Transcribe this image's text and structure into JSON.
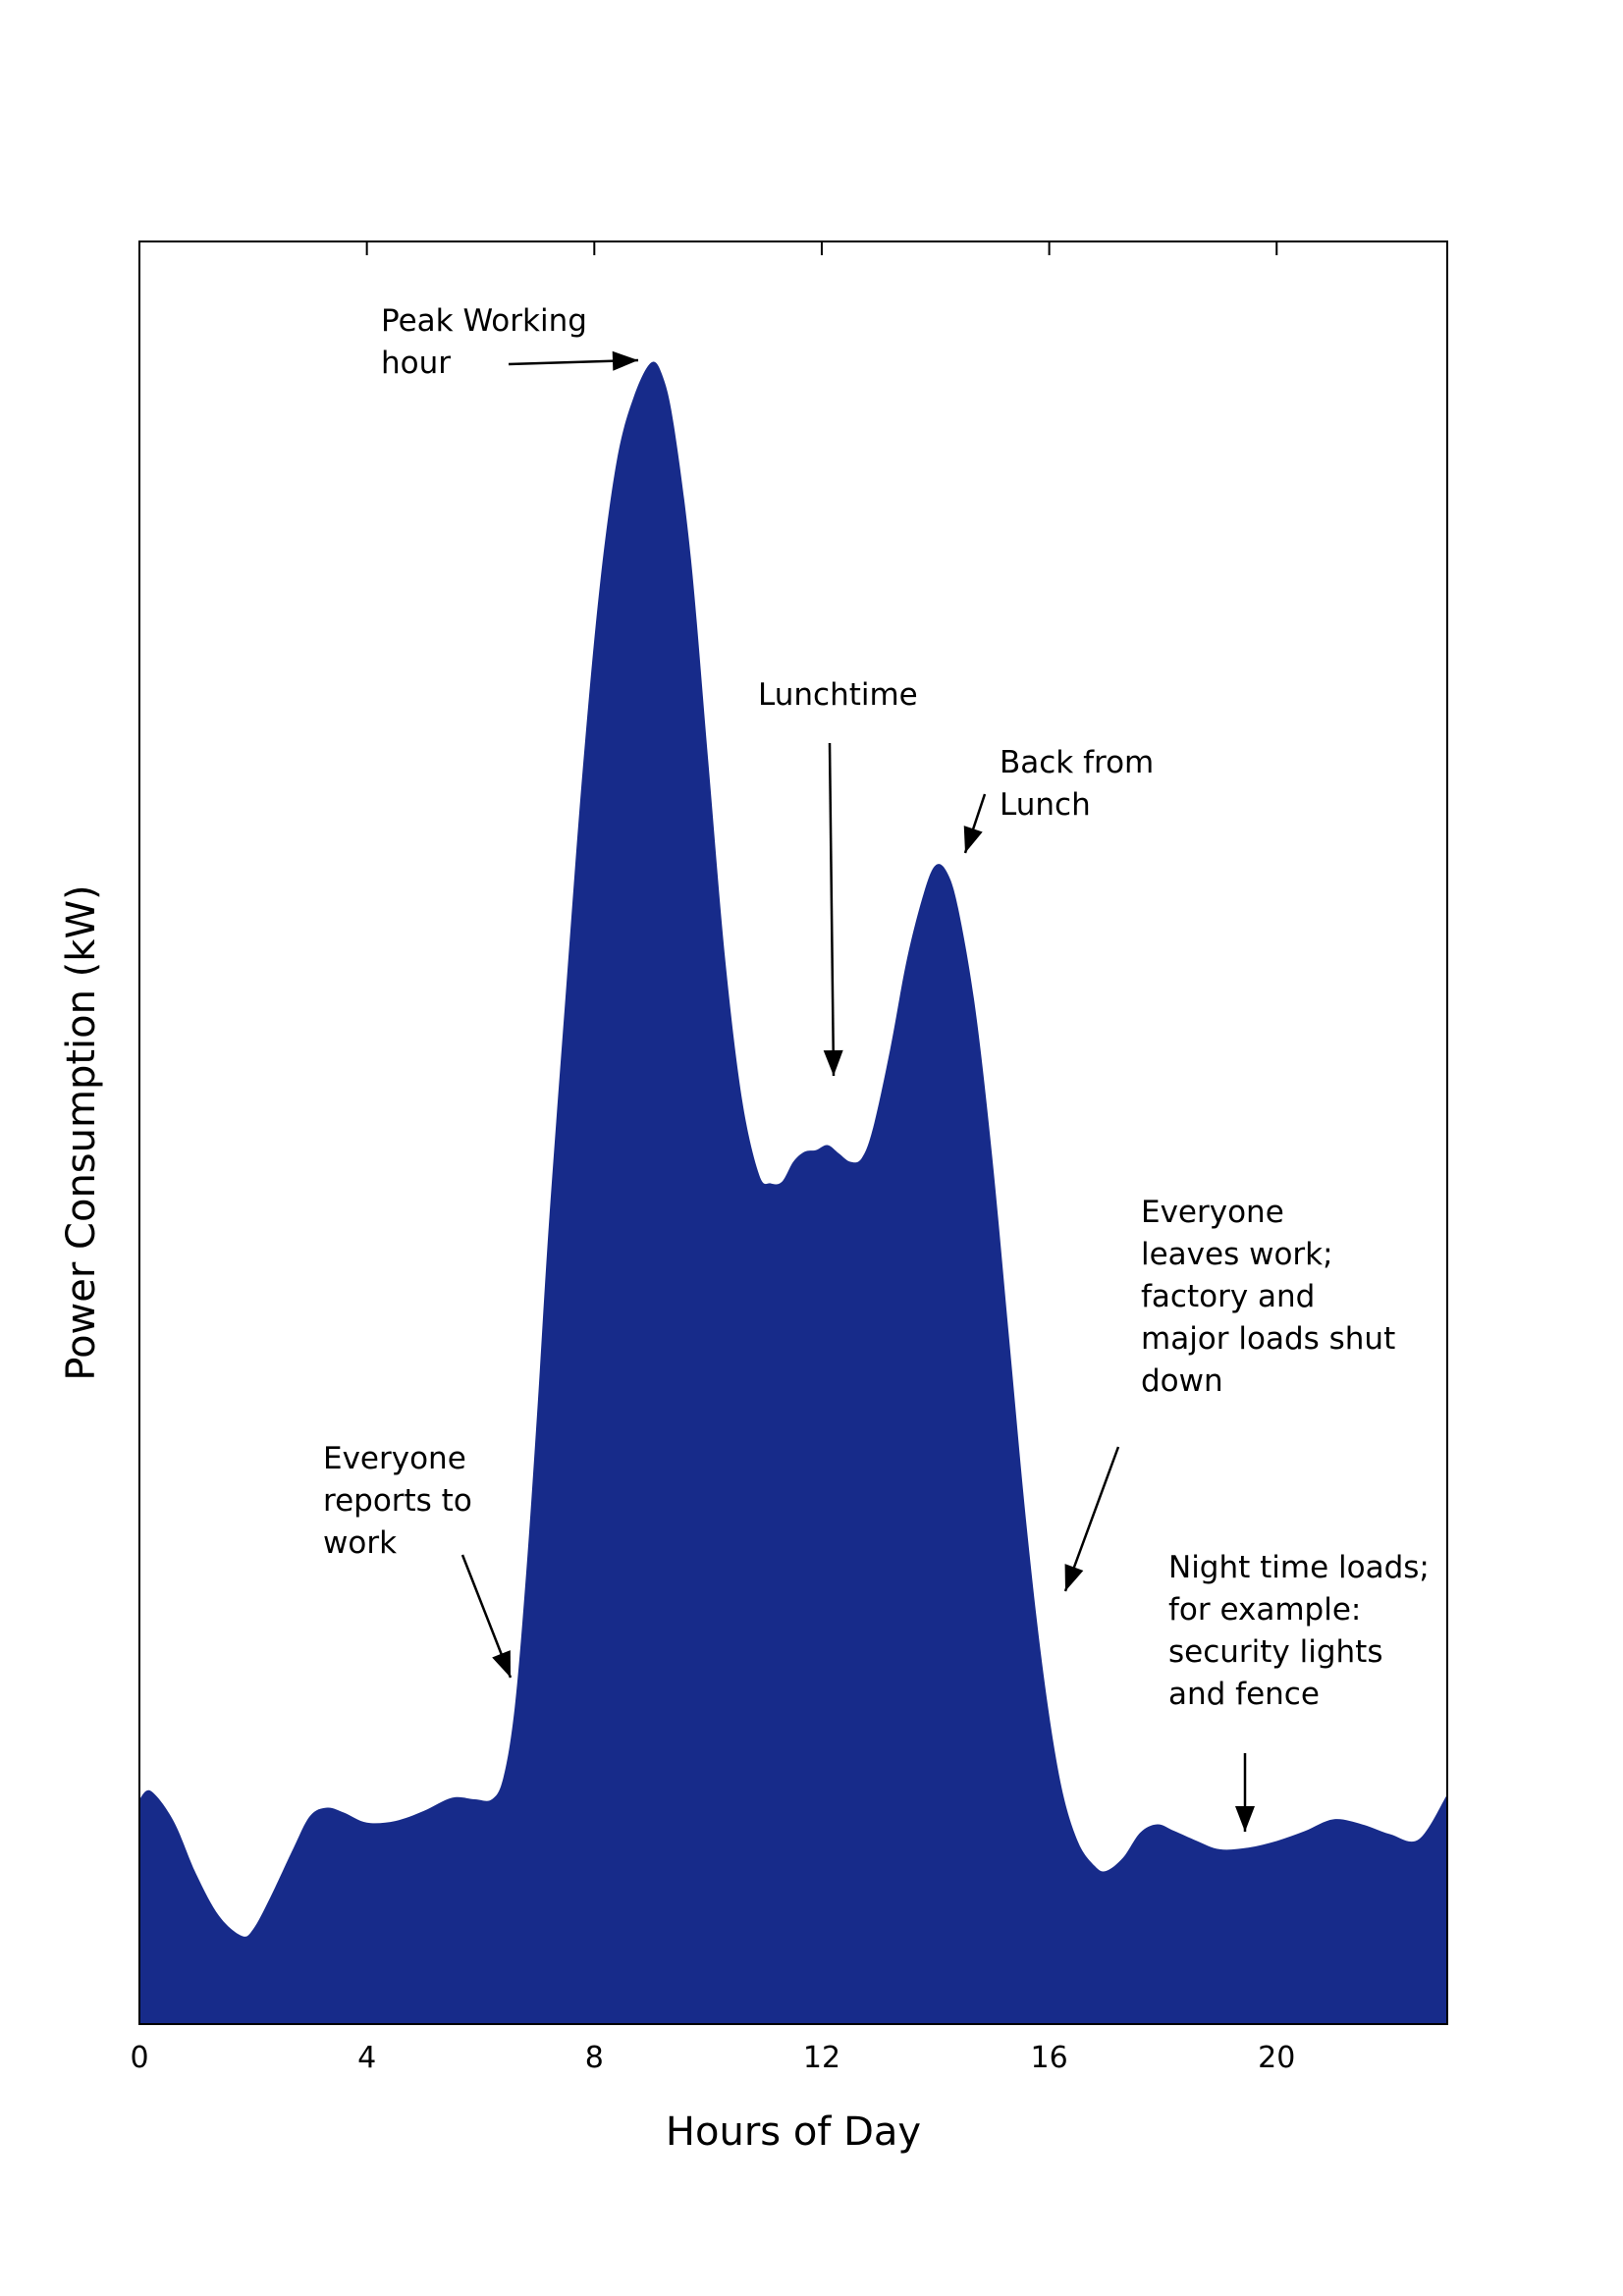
{
  "colors": {
    "fill": "#172b8a",
    "axis": "#000000",
    "background": "#ffffff"
  },
  "chart_data": {
    "type": "area",
    "title": "",
    "xlabel": "Hours of Day",
    "ylabel": "Power Consumption (kW)",
    "xlim": [
      0,
      23
    ],
    "ylim": [
      0,
      100
    ],
    "x_ticks": [
      0,
      4,
      8,
      12,
      16,
      20
    ],
    "y_ticks": [],
    "grid": false,
    "legend": "none",
    "series": [
      {
        "x": [
          0,
          0.2,
          0.6,
          1.0,
          1.4,
          1.8,
          2.0,
          2.3,
          2.7,
          3.0,
          3.3,
          3.6,
          4.0,
          4.5,
          5.0,
          5.5,
          5.9,
          6.2,
          6.4,
          6.6,
          6.8,
          7.0,
          7.2,
          7.5,
          7.8,
          8.1,
          8.4,
          8.7,
          9.0,
          9.2,
          9.4,
          9.7,
          10.0,
          10.3,
          10.6,
          10.9,
          11.1,
          11.3,
          11.5,
          11.7,
          11.9,
          12.1,
          12.3,
          12.5,
          12.7,
          12.9,
          13.2,
          13.5,
          13.8,
          14.0,
          14.2,
          14.4,
          14.7,
          15.0,
          15.3,
          15.6,
          15.9,
          16.2,
          16.5,
          16.8,
          17.0,
          17.3,
          17.6,
          17.9,
          18.2,
          18.6,
          19.0,
          19.5,
          20.0,
          20.5,
          21.0,
          21.5,
          22.0,
          22.5,
          23.0
        ],
        "values": [
          13.5,
          14.0,
          12.2,
          9.0,
          6.5,
          5.3,
          5.7,
          7.6,
          10.5,
          12.5,
          13.0,
          12.7,
          12.1,
          12.2,
          12.8,
          13.6,
          13.5,
          13.5,
          14.8,
          19.0,
          27.0,
          37.0,
          48.0,
          62.0,
          75.5,
          86.5,
          94.0,
          97.8,
          99.8,
          99.0,
          96.0,
          88.0,
          76.0,
          64.0,
          55.5,
          51.0,
          50.5,
          50.6,
          51.8,
          52.4,
          52.5,
          52.8,
          52.3,
          51.8,
          52.0,
          53.8,
          58.5,
          64.0,
          68.0,
          69.6,
          69.2,
          67.0,
          61.0,
          52.0,
          41.0,
          30.0,
          21.0,
          14.5,
          11.0,
          9.5,
          9.2,
          10.0,
          11.5,
          12.0,
          11.6,
          11.0,
          10.5,
          10.6,
          11.0,
          11.6,
          12.3,
          12.0,
          11.4,
          11.1,
          13.8
        ]
      }
    ],
    "annotations": [
      {
        "text": [
          "Peak Working",
          "hour"
        ],
        "x": 9.2,
        "y": 99.8
      },
      {
        "text": [
          "Lunchtime"
        ],
        "x": 12.2,
        "y": 56.0
      },
      {
        "text": [
          "Back from",
          "Lunch"
        ],
        "x": 14.3,
        "y": 69.6
      },
      {
        "text": [
          "Everyone",
          "leaves work;",
          "factory and",
          "major loads shut",
          "down"
        ],
        "x": 16.2,
        "y": 25.5
      },
      {
        "text": [
          "Everyone",
          "reports to",
          "work"
        ],
        "x": 6.6,
        "y": 19.2
      },
      {
        "text": [
          "Night time loads;",
          "for example:",
          "security lights",
          "and fence"
        ],
        "x": 19.5,
        "y": 10.7
      }
    ]
  }
}
